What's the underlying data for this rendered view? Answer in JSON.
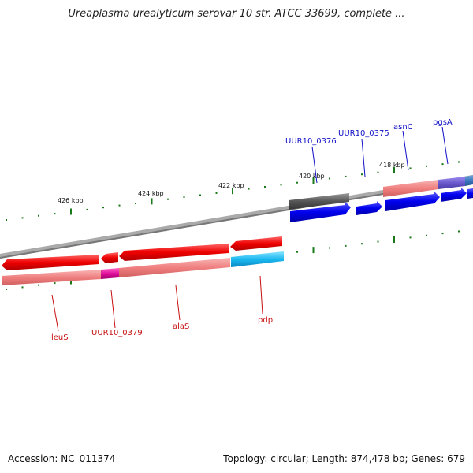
{
  "title": "Ureaplasma urealyticum serovar 10 str. ATCC 33699, complete ...",
  "footer": {
    "accession": "Accession: NC_011374",
    "summary": "Topology: circular; Length: 874,478 bp; Genes: 679"
  },
  "scale_labels": [
    "426 kbp",
    "424 kbp",
    "422 kbp",
    "420 kbp",
    "418 kbp"
  ],
  "genes_top": [
    "UUR10_0376",
    "UUR10_0375",
    "asnC",
    "pgsA"
  ],
  "genes_bottom": [
    "leuS",
    "UUR10_0379",
    "alaS",
    "pdp"
  ],
  "colors": {
    "top_label": "#1010c8",
    "bottom_label": "#c81010",
    "tick": "#1a7a1a",
    "backbone": "#888888",
    "cds_red": "#ee1111",
    "cds_pink": "#f08a8a",
    "cds_blue": "#1515e0",
    "cds_gray": "#666666",
    "cds_cyan": "#22bbee",
    "cds_magenta": "#e0209a",
    "cds_purple": "#6a5acd"
  }
}
